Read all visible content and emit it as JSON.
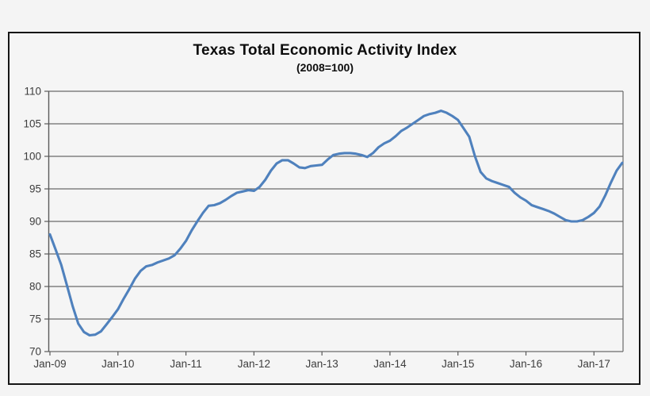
{
  "figure": {
    "title": "Texas Total Economic Activity Index",
    "subtitle": "(2008=100)"
  },
  "colors": {
    "line": "#4f81bd",
    "gridline": "#6a6a6a",
    "axis": "#5a5a5a",
    "frame_border": "#151515",
    "background": "#f4f4f4",
    "label_text": "#3d3d3d"
  },
  "chart_data": {
    "type": "line",
    "title": "Texas Total Economic Activity Index",
    "subtitle": "(2008=100)",
    "x_start": "Jan-09",
    "x_end": "Jun-17",
    "frequency": "monthly",
    "x_tick_labels": [
      "Jan-09",
      "Jan-10",
      "Jan-11",
      "Jan-12",
      "Jan-13",
      "Jan-14",
      "Jan-15",
      "Jan-16",
      "Jan-17"
    ],
    "months_per_x_tick": 12,
    "y_tick_labels": [
      70,
      75,
      80,
      85,
      90,
      95,
      100,
      105,
      110
    ],
    "ylim": [
      70,
      110
    ],
    "grid": "horizontal",
    "legend": "none",
    "series": [
      {
        "name": "Texas Total Economic Activity Index",
        "color": "#4f81bd",
        "values": [
          88.0,
          85.7,
          83.3,
          80.2,
          77.0,
          74.3,
          73.0,
          72.5,
          72.6,
          73.1,
          74.2,
          75.3,
          76.5,
          78.1,
          79.6,
          81.2,
          82.4,
          83.1,
          83.3,
          83.7,
          84.0,
          84.3,
          84.8,
          85.8,
          87.0,
          88.6,
          90.0,
          91.3,
          92.4,
          92.5,
          92.8,
          93.3,
          93.9,
          94.4,
          94.6,
          94.8,
          94.7,
          95.3,
          96.4,
          97.8,
          98.9,
          99.4,
          99.4,
          98.9,
          98.3,
          98.2,
          98.5,
          98.6,
          98.7,
          99.5,
          100.2,
          100.4,
          100.5,
          100.5,
          100.4,
          100.2,
          99.9,
          100.5,
          101.4,
          102.0,
          102.4,
          103.1,
          103.9,
          104.4,
          105.0,
          105.6,
          106.2,
          106.5,
          106.7,
          107.0,
          106.7,
          106.2,
          105.6,
          104.3,
          103.0,
          100.0,
          97.6,
          96.6,
          96.2,
          95.9,
          95.6,
          95.3,
          94.4,
          93.7,
          93.2,
          92.5,
          92.2,
          91.9,
          91.6,
          91.2,
          90.7,
          90.2,
          90.0,
          90.0,
          90.2,
          90.7,
          91.3,
          92.3,
          94.0,
          96.0,
          97.8,
          99.0
        ]
      }
    ]
  }
}
